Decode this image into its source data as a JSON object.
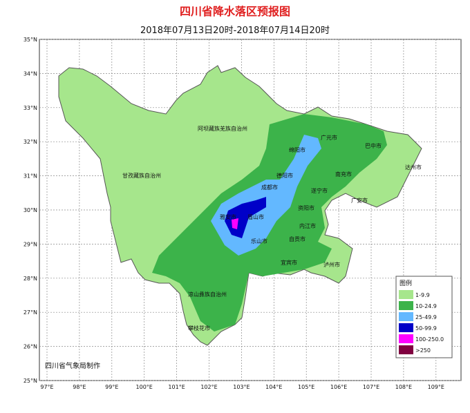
{
  "header": {
    "title": "四川省降水落区预报图",
    "subtitle": "2018年07月13日20时-2018年07月14日20时"
  },
  "axes": {
    "lat_ticks": [
      {
        "value": 35,
        "label": "35°N"
      },
      {
        "value": 34,
        "label": "34°N"
      },
      {
        "value": 33,
        "label": "33°N"
      },
      {
        "value": 32,
        "label": "32°N"
      },
      {
        "value": 31,
        "label": "31°N"
      },
      {
        "value": 30,
        "label": "30°N"
      },
      {
        "value": 29,
        "label": "29°N"
      },
      {
        "value": 28,
        "label": "28°N"
      },
      {
        "value": 27,
        "label": "27°N"
      },
      {
        "value": 26,
        "label": "26°N"
      },
      {
        "value": 25,
        "label": "25°N"
      }
    ],
    "lon_ticks": [
      {
        "value": 97,
        "label": "97°E"
      },
      {
        "value": 98,
        "label": "98°E"
      },
      {
        "value": 99,
        "label": "99°E"
      },
      {
        "value": 100,
        "label": "100°E"
      },
      {
        "value": 101,
        "label": "101°E"
      },
      {
        "value": 102,
        "label": "102°E"
      },
      {
        "value": 103,
        "label": "103°E"
      },
      {
        "value": 104,
        "label": "104°E"
      },
      {
        "value": 105,
        "label": "105°E"
      },
      {
        "value": 106,
        "label": "106°E"
      },
      {
        "value": 107,
        "label": "107°E"
      },
      {
        "value": 108,
        "label": "108°E"
      },
      {
        "value": 109,
        "label": "109°E"
      }
    ]
  },
  "regions": [
    "阿坝藏族羌族自治州",
    "甘孜藏族自治州",
    "广元市",
    "巴中市",
    "绵阳市",
    "达州市",
    "德阳市",
    "南充市",
    "成都市",
    "遂宁市",
    "广安市",
    "资阳市",
    "雅安市",
    "眉山市",
    "内江市",
    "乐山市",
    "自贡市",
    "宜宾市",
    "泸州市",
    "凉山彝族自治州",
    "攀枝花市"
  ],
  "legend": {
    "title": "图例",
    "items": [
      {
        "label": "1-9.9",
        "color": "#a6e68c"
      },
      {
        "label": "10-24.9",
        "color": "#3cb34a"
      },
      {
        "label": "25-49.9",
        "color": "#63b8ff"
      },
      {
        "label": "50-99.9",
        "color": "#0000c8"
      },
      {
        "label": "100-250.0",
        "color": "#ff00ff"
      },
      {
        "label": ">250",
        "color": "#800040"
      }
    ]
  },
  "credit": "四川省气象局制作"
}
